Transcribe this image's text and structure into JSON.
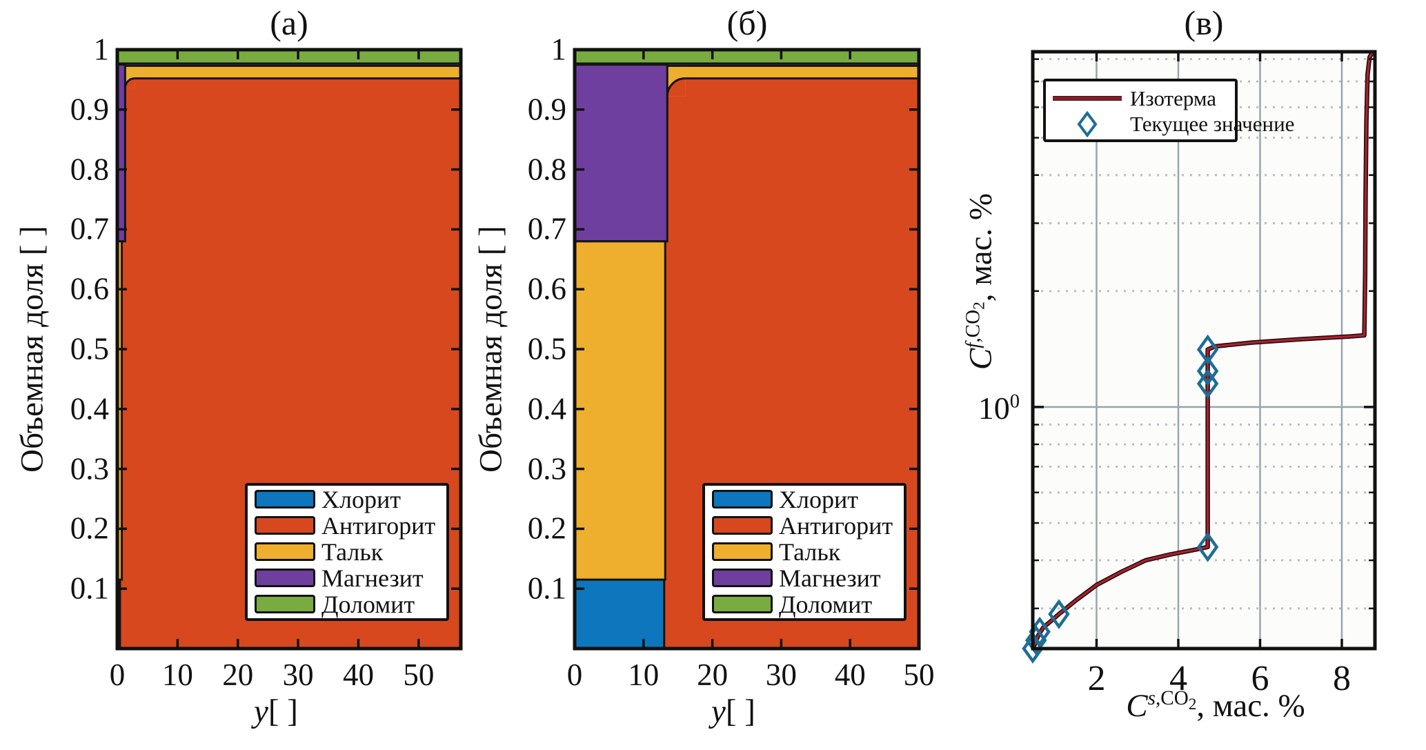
{
  "figure": {
    "background": "#ffffff"
  },
  "colors": {
    "chlorite": "#0d76bd",
    "antigorite": "#d8481f",
    "talc": "#eeae2e",
    "magnesite": "#6e3f9e",
    "dolomite": "#78ac41",
    "isotherm_line": "#b01f2e",
    "isotherm_edge": "#1a1010",
    "marker_stroke": "#1e6e96",
    "axis": "#111111",
    "grid_major": "#9aa4ab",
    "grid_minor": "#b7bfc6",
    "layer_edge": "#141414"
  },
  "panel_a": {
    "title": "(а)",
    "ylabel": "Объемная доля [ ]",
    "xlabel_var": "y",
    "xlabel_unit": "[ ]"
  },
  "panel_b": {
    "title": "(б)",
    "ylabel": "Объемная доля [ ]",
    "xlabel_var": "y",
    "xlabel_unit": "[ ]"
  },
  "panel_c": {
    "title": "(в)",
    "ylabel": {
      "base": "C",
      "sup_italic": "f",
      "sup_text": ",CO",
      "sub": "2",
      "tail": ", мас. %"
    },
    "xlabel": {
      "base": "C",
      "sup_italic": "s",
      "sup_text": ",CO",
      "sub": "2",
      "tail": ", мас. %"
    },
    "y_tick": {
      "base": "10",
      "sup": "0"
    },
    "legend": [
      {
        "label": "Изотерма",
        "swatch": "line"
      },
      {
        "label": "Текущее значение",
        "swatch": "diamond"
      }
    ]
  },
  "chart_data": [
    {
      "id": "a",
      "type": "area",
      "title": "(а)",
      "xlabel": "y[ ]",
      "ylabel": "Объемная доля [ ]",
      "xlim": [
        0,
        57
      ],
      "ylim": [
        0,
        1
      ],
      "x_ticks": [
        0,
        10,
        20,
        30,
        40,
        50
      ],
      "y_ticks": [
        0.1,
        0.2,
        0.3,
        0.4,
        0.5,
        0.6,
        0.7,
        0.8,
        0.9,
        1
      ],
      "grid": false,
      "legend_position": "bottom-right",
      "legend": [
        {
          "label": "Хлорит",
          "color_key": "chlorite"
        },
        {
          "label": "Антигорит",
          "color_key": "antigorite"
        },
        {
          "label": "Тальк",
          "color_key": "talc"
        },
        {
          "label": "Магнезит",
          "color_key": "magnesite"
        },
        {
          "label": "Доломит",
          "color_key": "dolomite"
        }
      ],
      "initial_stack_tops": {
        "chlorite": 0.115,
        "talc": 0.68,
        "magnesite": 0.975,
        "dolomite": 1.0
      },
      "reacted_stack_tops": {
        "antigorite": 0.952,
        "talc": 0.973,
        "magnesite": 0.977,
        "dolomite": 1.0
      },
      "reaction_front_x": {
        "chlorite": 0.45,
        "talc": 0.75,
        "magnesite": 1.3
      }
    },
    {
      "id": "b",
      "type": "area",
      "title": "(б)",
      "xlabel": "y[ ]",
      "ylabel": "Объемная доля [ ]",
      "xlim": [
        0,
        50
      ],
      "ylim": [
        0,
        1
      ],
      "x_ticks": [
        0,
        10,
        20,
        30,
        40,
        50
      ],
      "y_ticks": [
        0.1,
        0.2,
        0.3,
        0.4,
        0.5,
        0.6,
        0.7,
        0.8,
        0.9,
        1
      ],
      "grid": false,
      "legend_position": "bottom-right",
      "legend": [
        {
          "label": "Хлорит",
          "color_key": "chlorite"
        },
        {
          "label": "Антигорит",
          "color_key": "antigorite"
        },
        {
          "label": "Тальк",
          "color_key": "talc"
        },
        {
          "label": "Магнезит",
          "color_key": "magnesite"
        },
        {
          "label": "Доломит",
          "color_key": "dolomite"
        }
      ],
      "initial_stack_tops": {
        "chlorite": 0.115,
        "talc": 0.68,
        "magnesite": 0.975,
        "dolomite": 1.0
      },
      "reacted_stack_tops": {
        "antigorite": 0.952,
        "talc": 0.973,
        "magnesite": 0.977,
        "dolomite": 1.0
      },
      "reaction_front_x": {
        "chlorite": 13.0,
        "talc": 13.15,
        "magnesite": 13.45
      }
    },
    {
      "id": "c",
      "type": "line",
      "title": "(в)",
      "xlabel": "C^{s,CO2}, мас. %",
      "ylabel": "C^{f,CO2}, мас. %",
      "xscale": "linear",
      "yscale": "log",
      "xlim": [
        0.44,
        8.81
      ],
      "ylim": [
        0.236,
        8.36
      ],
      "x_ticks": [
        2,
        4,
        6,
        8
      ],
      "y_major_ticks": [
        1
      ],
      "y_tick_labels": [
        "10^0"
      ],
      "y_minor_gridlines": [
        0.3,
        0.4,
        0.5,
        0.6,
        0.7,
        0.8,
        0.9,
        2,
        3,
        4,
        5,
        6,
        7,
        8
      ],
      "grid": true,
      "legend_position": "top-left",
      "series": [
        {
          "name": "Изотерма",
          "type": "line",
          "points": [
            [
              0.44,
              0.235
            ],
            [
              0.5,
              0.244
            ],
            [
              0.58,
              0.256
            ],
            [
              0.7,
              0.268
            ],
            [
              0.9,
              0.279
            ],
            [
              1.08,
              0.29
            ],
            [
              1.5,
              0.315
            ],
            [
              2.0,
              0.345
            ],
            [
              2.6,
              0.373
            ],
            [
              3.2,
              0.4
            ],
            [
              3.8,
              0.414
            ],
            [
              4.4,
              0.426
            ],
            [
              4.72,
              0.433
            ],
            [
              4.72,
              0.6
            ],
            [
              4.72,
              1.0
            ],
            [
              4.72,
              1.41
            ],
            [
              4.9,
              1.437
            ],
            [
              5.8,
              1.47
            ],
            [
              7.0,
              1.5
            ],
            [
              8.2,
              1.525
            ],
            [
              8.55,
              1.535
            ],
            [
              8.57,
              2.2
            ],
            [
              8.58,
              3.5
            ],
            [
              8.6,
              5.5
            ],
            [
              8.63,
              7.3
            ],
            [
              8.68,
              8.1
            ],
            [
              8.76,
              8.36
            ]
          ]
        },
        {
          "name": "Текущее значение",
          "type": "scatter",
          "marker": "diamond",
          "points": [
            [
              0.44,
              0.236
            ],
            [
              0.52,
              0.248
            ],
            [
              0.61,
              0.261
            ],
            [
              1.08,
              0.29
            ],
            [
              4.72,
              0.433
            ],
            [
              4.72,
              1.15
            ],
            [
              4.72,
              1.24
            ],
            [
              4.72,
              1.41
            ]
          ]
        }
      ]
    }
  ]
}
